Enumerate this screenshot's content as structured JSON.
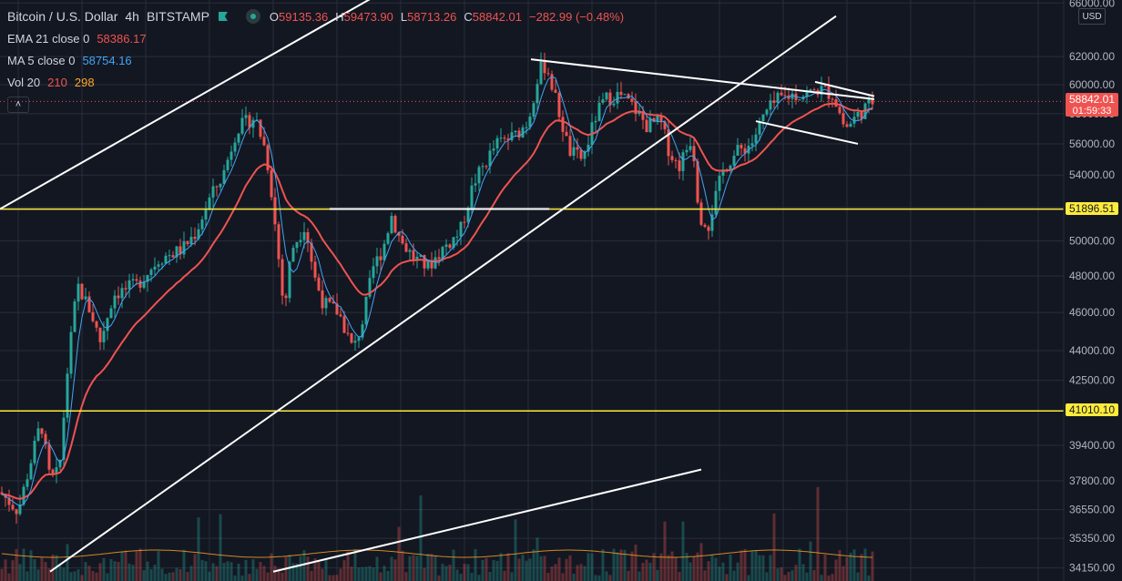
{
  "header": {
    "symbol": "Bitcoin / U.S. Dollar",
    "interval": "4h",
    "exchange": "BITSTAMP",
    "ohlc": [
      {
        "key": "O",
        "value": "59135.36"
      },
      {
        "key": "H",
        "value": "59473.90"
      },
      {
        "key": "L",
        "value": "58713.26"
      },
      {
        "key": "C",
        "value": "58842.01"
      }
    ],
    "change": "−282.99 (−0.48%)"
  },
  "indicators": {
    "ema": {
      "name": "EMA 21 close 0",
      "value": "58386.17"
    },
    "ma": {
      "name": "MA 5 close 0",
      "value": "58754.16"
    },
    "vol": {
      "name": "Vol 20",
      "value_a": "210",
      "value_b": "298"
    }
  },
  "collapse_glyph": "˄",
  "axis": {
    "currency": "USD",
    "ticks": [
      "66000.00",
      "62000.00",
      "60000.00",
      "58000.00",
      "56000.00",
      "54000.00",
      "52000.00",
      "50000.00",
      "48000.00",
      "46000.00",
      "44000.00",
      "42500.00",
      "39400.00",
      "37800.00",
      "36550.00",
      "35350.00",
      "34150.00"
    ],
    "tick_values": [
      66000,
      62000,
      60000,
      58000,
      56000,
      54000,
      52000,
      50000,
      48000,
      46000,
      44000,
      42500,
      39400,
      37800,
      36550,
      35350,
      34150
    ]
  },
  "price_labels": {
    "current": "58842.01",
    "countdown": "01:59:33",
    "level_1": "51896.51",
    "level_2": "41010.10"
  },
  "colors": {
    "background": "#131722",
    "grid": "#2a2e39",
    "up": "#26a69a",
    "down": "#ef5350",
    "ema": "#ef5350",
    "ma": "#42a5f5",
    "volume_ma": "#ffa726",
    "trendline": "#ffffff",
    "level": "#ffeb3b"
  },
  "chart_data": {
    "type": "candlestick",
    "scale": "log",
    "horizontal_levels": [
      51896.51,
      41010.1
    ],
    "current_price": 58842.01,
    "y_range": [
      34150,
      66000
    ],
    "price_path": [
      [
        0,
        37300
      ],
      [
        20,
        36500
      ],
      [
        45,
        40500
      ],
      [
        55,
        37800
      ],
      [
        65,
        38200
      ],
      [
        75,
        43500
      ],
      [
        85,
        47500
      ],
      [
        100,
        46000
      ],
      [
        110,
        44500
      ],
      [
        125,
        47000
      ],
      [
        150,
        47500
      ],
      [
        175,
        49000
      ],
      [
        200,
        49500
      ],
      [
        215,
        50500
      ],
      [
        230,
        52500
      ],
      [
        245,
        54000
      ],
      [
        260,
        57000
      ],
      [
        280,
        57800
      ],
      [
        292,
        55500
      ],
      [
        298,
        53000
      ],
      [
        305,
        49500
      ],
      [
        312,
        46000
      ],
      [
        320,
        49500
      ],
      [
        335,
        51000
      ],
      [
        345,
        48000
      ],
      [
        355,
        46500
      ],
      [
        372,
        46000
      ],
      [
        380,
        45000
      ],
      [
        388,
        44000
      ],
      [
        398,
        45500
      ],
      [
        410,
        48500
      ],
      [
        420,
        49500
      ],
      [
        430,
        51500
      ],
      [
        440,
        50000
      ],
      [
        455,
        49000
      ],
      [
        470,
        48500
      ],
      [
        485,
        49500
      ],
      [
        505,
        50500
      ],
      [
        520,
        53500
      ],
      [
        545,
        56000
      ],
      [
        565,
        56500
      ],
      [
        580,
        57500
      ],
      [
        592,
        61000
      ],
      [
        600,
        61400
      ],
      [
        610,
        59000
      ],
      [
        625,
        55500
      ],
      [
        640,
        55000
      ],
      [
        655,
        58000
      ],
      [
        665,
        59000
      ],
      [
        680,
        59300
      ],
      [
        695,
        58500
      ],
      [
        710,
        57200
      ],
      [
        725,
        57500
      ],
      [
        735,
        55500
      ],
      [
        745,
        54500
      ],
      [
        760,
        56500
      ],
      [
        768,
        51500
      ],
      [
        778,
        51000
      ],
      [
        785,
        52500
      ],
      [
        795,
        54500
      ],
      [
        810,
        55500
      ],
      [
        825,
        56000
      ],
      [
        840,
        58000
      ],
      [
        855,
        59000
      ],
      [
        870,
        59300
      ],
      [
        885,
        59300
      ],
      [
        900,
        59700
      ],
      [
        915,
        59300
      ],
      [
        928,
        57000
      ],
      [
        940,
        57800
      ],
      [
        952,
        58500
      ],
      [
        958,
        58842
      ]
    ]
  }
}
